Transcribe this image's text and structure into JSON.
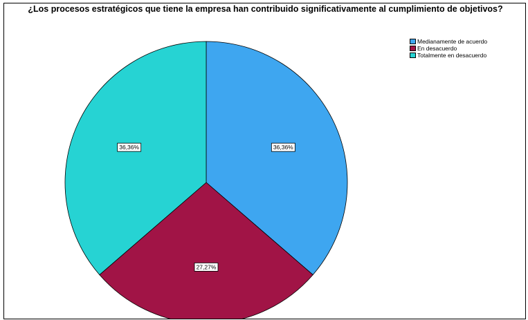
{
  "chart_data": {
    "type": "pie",
    "title": "¿Los procesos estratégicos que tiene la empresa han contribuido significativamente al cumplimiento de objetivos?",
    "legend_position": "top-right",
    "slices": [
      {
        "name": "Medianamente de acuerdo",
        "value": 36.36,
        "label": "36,36%",
        "color": "#3ea6f0"
      },
      {
        "name": "En desacuerdo",
        "value": 27.27,
        "label": "27,27%",
        "color": "#a11446"
      },
      {
        "name": "Totalmente en desacuerdo",
        "value": 36.36,
        "label": "36,36%",
        "color": "#26d3d3"
      }
    ]
  }
}
